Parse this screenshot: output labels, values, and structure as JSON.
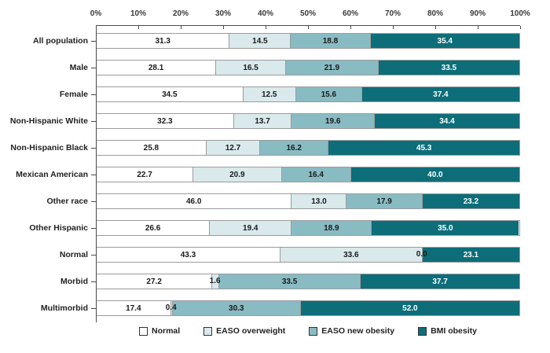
{
  "chart_data": {
    "type": "bar",
    "orientation": "horizontal",
    "stacked": true,
    "grid": false,
    "legend_position": "bottom",
    "x_axis": {
      "range": [
        0,
        100
      ],
      "tick_labels": [
        "0%",
        "10%",
        "20%",
        "30%",
        "40%",
        "50%",
        "60%",
        "70%",
        "80%",
        "90%",
        "100%"
      ]
    },
    "categories": [
      "All population",
      "Male",
      "Female",
      "Non-Hispanic White",
      "Non-Hispanic Black",
      "Mexican American",
      "Other race",
      "Other Hispanic",
      "Normal",
      "Morbid",
      "Multimorbid"
    ],
    "series": [
      {
        "name": "Normal",
        "color": "#ffffff",
        "text_color": "#1a1a1a",
        "values": [
          31.3,
          28.1,
          34.5,
          32.3,
          25.8,
          22.7,
          46.0,
          26.6,
          43.3,
          27.2,
          17.4
        ]
      },
      {
        "name": "EASO overweight",
        "color": "#d9e9ec",
        "text_color": "#1a1a1a",
        "values": [
          14.5,
          16.5,
          12.5,
          13.7,
          12.7,
          20.9,
          13.0,
          19.4,
          33.6,
          1.6,
          0.4
        ]
      },
      {
        "name": "EASO new obesity",
        "color": "#89bbc3",
        "text_color": "#1a1a1a",
        "values": [
          18.8,
          21.9,
          15.6,
          19.6,
          16.2,
          16.4,
          17.9,
          18.9,
          0.0,
          33.5,
          30.3
        ]
      },
      {
        "name": "BMI obesity",
        "color": "#0d6e79",
        "text_color": "#ffffff",
        "values": [
          35.4,
          33.5,
          37.4,
          34.4,
          45.3,
          40.0,
          23.2,
          35.0,
          23.1,
          37.7,
          52.0
        ]
      }
    ]
  },
  "layout_colors": {
    "axis": "#4c4c4c",
    "bar_border": "#9c9c9c",
    "label_text": "#222222"
  }
}
